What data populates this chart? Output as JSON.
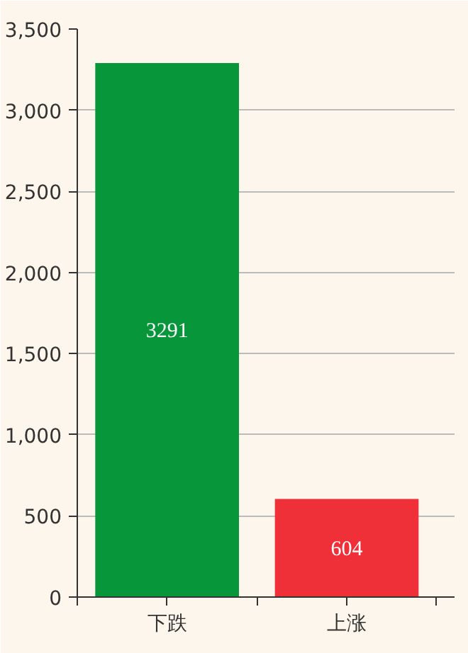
{
  "chart_data": {
    "type": "bar",
    "categories": [
      "下跌",
      "上涨"
    ],
    "values": [
      3291,
      604
    ],
    "colors": [
      "#07973a",
      "#ef3039"
    ],
    "ylim": [
      0,
      3500
    ],
    "yticks": [
      0,
      {
        "value": 500,
        "label": "500"
      },
      {
        "value": 1000,
        "label": "1,000"
      },
      {
        "value": 1500,
        "label": "1,500"
      },
      {
        "value": 2000,
        "label": "2,000"
      },
      {
        "value": 2500,
        "label": "2,500"
      },
      {
        "value": 3000,
        "label": "3,000"
      },
      {
        "value": 3500,
        "label": "3,500"
      }
    ],
    "grid": "y",
    "data_labels": true
  }
}
